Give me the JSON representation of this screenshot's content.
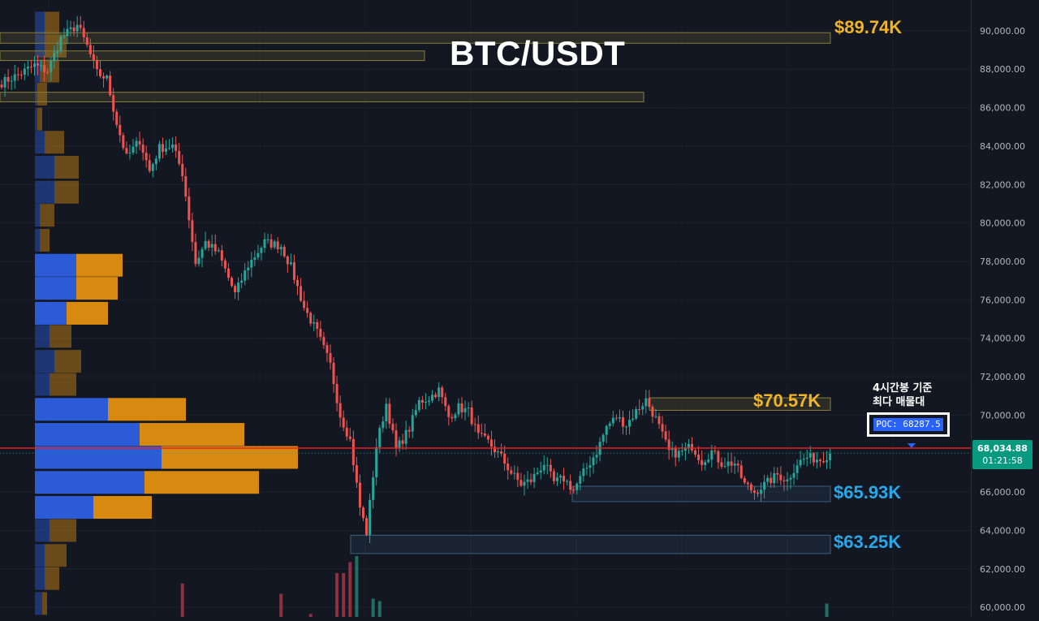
{
  "title": "BTC/USDT",
  "chart_data": {
    "type": "candlestick",
    "symbol": "BTC/USDT",
    "ylim": [
      59500,
      91600
    ],
    "y_ticks": [
      "90,000.00",
      "88,000.00",
      "86,000.00",
      "84,000.00",
      "82,000.00",
      "80,000.00",
      "78,000.00",
      "76,000.00",
      "74,000.00",
      "72,000.00",
      "70,000.00",
      "68,000.00",
      "66,000.00",
      "64,000.00",
      "62,000.00",
      "60,000.00"
    ],
    "y_tick_values": [
      90000,
      88000,
      86000,
      84000,
      82000,
      80000,
      78000,
      76000,
      74000,
      72000,
      70000,
      68000,
      66000,
      64000,
      62000,
      60000
    ],
    "current_price": "68,034.88",
    "current_price_value": 68034.88,
    "countdown": "01:21:58",
    "poc_label": "POC: 68287.5",
    "poc_value": 68287.5,
    "annotation": "4시간봉 기준\n최다 매물대",
    "levels": [
      {
        "label": "$89.74K",
        "value": 89740,
        "color": "#f0b429"
      },
      {
        "label": "$70.57K",
        "value": 70570,
        "color": "#f0b429"
      },
      {
        "label": "$65.93K",
        "value": 65930,
        "color": "#2aa7e8"
      },
      {
        "label": "$63.25K",
        "value": 63250,
        "color": "#2aa7e8"
      }
    ],
    "zones": [
      {
        "top": 89900,
        "bottom": 89350,
        "type": "supply"
      },
      {
        "top": 88950,
        "bottom": 88450,
        "type": "supply"
      },
      {
        "top": 86800,
        "bottom": 86300,
        "type": "supply"
      },
      {
        "top": 70900,
        "bottom": 70250,
        "type": "supply"
      },
      {
        "top": 66300,
        "bottom": 65500,
        "type": "demand"
      },
      {
        "top": 63750,
        "bottom": 62800,
        "type": "demand"
      }
    ],
    "volume_profile": [
      {
        "price": 90400,
        "buy": 4,
        "sell": 6
      },
      {
        "price": 89200,
        "buy": 4,
        "sell": 9
      },
      {
        "price": 87900,
        "buy": 2,
        "sell": 8
      },
      {
        "price": 86700,
        "buy": 1,
        "sell": 4
      },
      {
        "price": 85400,
        "buy": 1,
        "sell": 2
      },
      {
        "price": 84200,
        "buy": 4,
        "sell": 8
      },
      {
        "price": 82900,
        "buy": 8,
        "sell": 10
      },
      {
        "price": 81600,
        "buy": 8,
        "sell": 10
      },
      {
        "price": 80400,
        "buy": 2,
        "sell": 6
      },
      {
        "price": 79100,
        "buy": 2,
        "sell": 4
      },
      {
        "price": 77800,
        "buy": 17,
        "sell": 19
      },
      {
        "price": 76600,
        "buy": 17,
        "sell": 17
      },
      {
        "price": 75300,
        "buy": 13,
        "sell": 17
      },
      {
        "price": 74100,
        "buy": 6,
        "sell": 9
      },
      {
        "price": 72800,
        "buy": 8,
        "sell": 11
      },
      {
        "price": 71600,
        "buy": 6,
        "sell": 11
      },
      {
        "price": 70300,
        "buy": 30,
        "sell": 32
      },
      {
        "price": 69000,
        "buy": 43,
        "sell": 43
      },
      {
        "price": 67800,
        "buy": 52,
        "sell": 56
      },
      {
        "price": 66500,
        "buy": 45,
        "sell": 47
      },
      {
        "price": 65200,
        "buy": 24,
        "sell": 24
      },
      {
        "price": 64000,
        "buy": 6,
        "sell": 11
      },
      {
        "price": 62700,
        "buy": 4,
        "sell": 9
      },
      {
        "price": 61500,
        "buy": 4,
        "sell": 6
      },
      {
        "price": 60200,
        "buy": 3,
        "sell": 2
      }
    ],
    "close_path": [
      [
        0,
        87300
      ],
      [
        5,
        87700
      ],
      [
        10,
        88200
      ],
      [
        14,
        87900
      ],
      [
        18,
        89600
      ],
      [
        23,
        90300
      ],
      [
        26,
        89200
      ],
      [
        29,
        87800
      ],
      [
        32,
        87500
      ],
      [
        35,
        85200
      ],
      [
        38,
        83400
      ],
      [
        42,
        84300
      ],
      [
        45,
        82700
      ],
      [
        48,
        83900
      ],
      [
        52,
        84000
      ],
      [
        55,
        82600
      ],
      [
        59,
        77900
      ],
      [
        62,
        79000
      ],
      [
        66,
        78400
      ],
      [
        71,
        76300
      ],
      [
        75,
        77800
      ],
      [
        80,
        79000
      ],
      [
        85,
        78800
      ],
      [
        88,
        77700
      ],
      [
        92,
        75600
      ],
      [
        96,
        74300
      ],
      [
        100,
        72600
      ],
      [
        103,
        70000
      ],
      [
        106,
        68700
      ],
      [
        109,
        65200
      ],
      [
        111,
        63900
      ],
      [
        114,
        68400
      ],
      [
        117,
        70600
      ],
      [
        120,
        68200
      ],
      [
        124,
        69300
      ],
      [
        127,
        70700
      ],
      [
        130,
        70900
      ],
      [
        133,
        71300
      ],
      [
        136,
        69900
      ],
      [
        139,
        70400
      ],
      [
        142,
        70200
      ],
      [
        145,
        68900
      ],
      [
        148,
        68600
      ],
      [
        152,
        67800
      ],
      [
        155,
        67000
      ],
      [
        158,
        66400
      ],
      [
        161,
        66600
      ],
      [
        165,
        67500
      ],
      [
        168,
        66500
      ],
      [
        171,
        66700
      ],
      [
        174,
        66100
      ],
      [
        177,
        67000
      ],
      [
        181,
        68100
      ],
      [
        184,
        69400
      ],
      [
        187,
        69900
      ],
      [
        190,
        69500
      ],
      [
        193,
        70200
      ],
      [
        196,
        70800
      ],
      [
        199,
        69800
      ],
      [
        203,
        68100
      ],
      [
        206,
        68000
      ],
      [
        210,
        68400
      ],
      [
        213,
        67600
      ],
      [
        216,
        68100
      ],
      [
        219,
        67500
      ],
      [
        223,
        67500
      ],
      [
        226,
        66400
      ],
      [
        229,
        66000
      ],
      [
        233,
        66500
      ],
      [
        236,
        66900
      ],
      [
        239,
        66600
      ],
      [
        242,
        67500
      ],
      [
        245,
        67800
      ],
      [
        249,
        67700
      ],
      [
        252,
        68000
      ]
    ],
    "volume_bars": [
      {
        "i": 55,
        "value": 0.55,
        "dir": "down"
      },
      {
        "i": 85,
        "value": 0.38,
        "dir": "down"
      },
      {
        "i": 94,
        "value": 0.05,
        "dir": "down"
      },
      {
        "i": 102,
        "value": 0.72,
        "dir": "down"
      },
      {
        "i": 104,
        "value": 0.72,
        "dir": "down"
      },
      {
        "i": 106,
        "value": 0.9,
        "dir": "down"
      },
      {
        "i": 108,
        "value": 1.0,
        "dir": "up"
      },
      {
        "i": 113,
        "value": 0.3,
        "dir": "up"
      },
      {
        "i": 115,
        "value": 0.26,
        "dir": "up"
      },
      {
        "i": 251,
        "value": 0.22,
        "dir": "up"
      }
    ]
  }
}
